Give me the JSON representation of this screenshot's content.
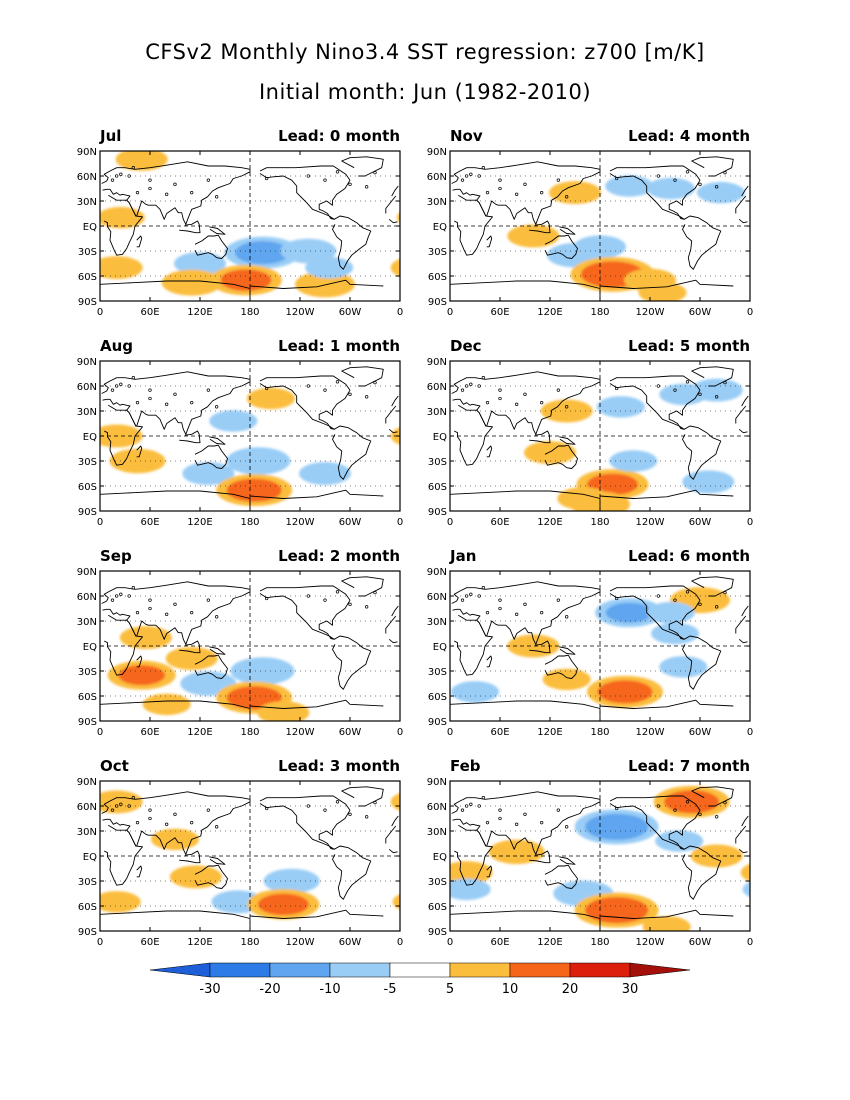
{
  "figure": {
    "title_line1": "CFSv2 Monthly Nino3.4 SST regression: z700 [m/K]",
    "title_line2": "Initial month: Jun (1982-2010)"
  },
  "axes": {
    "x_ticks": [
      "0",
      "60E",
      "120E",
      "180",
      "120W",
      "60W",
      "0"
    ],
    "y_ticks": [
      "90N",
      "60N",
      "30N",
      "EQ",
      "30S",
      "60S",
      "90S"
    ]
  },
  "colorbar": {
    "levels": [
      -30,
      -20,
      -10,
      -5,
      5,
      10,
      20,
      30
    ],
    "labels": [
      "-30",
      "-20",
      "-10",
      "-5",
      "5",
      "10",
      "20",
      "30"
    ],
    "colors": [
      "#1c5fd8",
      "#2c7be6",
      "#5fa5ef",
      "#9acdf6",
      "#ffffff",
      "#fbbd3c",
      "#f6661a",
      "#db1f0c",
      "#a50f0a"
    ]
  },
  "chart_data": {
    "type": "heatmap",
    "variable": "z700 regression on Nino3.4 SST",
    "units": "m/K",
    "x_range_lon": [
      0,
      360
    ],
    "y_range_lat": [
      -90,
      90
    ],
    "panels": [
      {
        "id": "p0",
        "month": "Jul",
        "lead": "Lead: 0 month",
        "features": [
          {
            "lon": 195,
            "lat": -32,
            "val": -12
          },
          {
            "lon": 250,
            "lat": -30,
            "val": -7
          },
          {
            "lon": 120,
            "lat": -45,
            "val": -6
          },
          {
            "lon": 175,
            "lat": -65,
            "val": 11
          },
          {
            "lon": 110,
            "lat": -68,
            "val": 8
          },
          {
            "lon": 270,
            "lat": -70,
            "val": 8
          },
          {
            "lon": 20,
            "lat": -50,
            "val": 6
          },
          {
            "lon": 50,
            "lat": 80,
            "val": 6
          },
          {
            "lon": 25,
            "lat": 10,
            "val": 5
          },
          {
            "lon": 275,
            "lat": -50,
            "val": -5
          }
        ]
      },
      {
        "id": "p1",
        "month": "Nov",
        "lead": "Lead: 4 month",
        "features": [
          {
            "lon": 150,
            "lat": -35,
            "val": -7
          },
          {
            "lon": 180,
            "lat": -25,
            "val": -6
          },
          {
            "lon": 195,
            "lat": -58,
            "val": 14
          },
          {
            "lon": 240,
            "lat": -65,
            "val": 6
          },
          {
            "lon": 100,
            "lat": -12,
            "val": 6
          },
          {
            "lon": 215,
            "lat": 48,
            "val": -5
          },
          {
            "lon": 265,
            "lat": 45,
            "val": -5
          },
          {
            "lon": 325,
            "lat": 40,
            "val": -5
          },
          {
            "lon": 150,
            "lat": 40,
            "val": 6
          },
          {
            "lon": 255,
            "lat": -80,
            "val": 5
          }
        ]
      },
      {
        "id": "p2",
        "month": "Aug",
        "lead": "Lead: 1 month",
        "features": [
          {
            "lon": 190,
            "lat": -30,
            "val": -9
          },
          {
            "lon": 130,
            "lat": -45,
            "val": -6
          },
          {
            "lon": 185,
            "lat": -65,
            "val": 12
          },
          {
            "lon": 45,
            "lat": -30,
            "val": 7
          },
          {
            "lon": 20,
            "lat": 0,
            "val": 6
          },
          {
            "lon": 205,
            "lat": 45,
            "val": 5
          },
          {
            "lon": 160,
            "lat": 18,
            "val": -5
          },
          {
            "lon": 270,
            "lat": -45,
            "val": -6
          }
        ]
      },
      {
        "id": "p3",
        "month": "Dec",
        "lead": "Lead: 5 month",
        "features": [
          {
            "lon": 195,
            "lat": -58,
            "val": 11
          },
          {
            "lon": 120,
            "lat": -20,
            "val": 6
          },
          {
            "lon": 160,
            "lat": -75,
            "val": 6
          },
          {
            "lon": 180,
            "lat": -82,
            "val": 8
          },
          {
            "lon": 310,
            "lat": -55,
            "val": -6
          },
          {
            "lon": 205,
            "lat": 35,
            "val": -5
          },
          {
            "lon": 280,
            "lat": 50,
            "val": -5
          },
          {
            "lon": 320,
            "lat": 55,
            "val": -6
          },
          {
            "lon": 140,
            "lat": 30,
            "val": 6
          },
          {
            "lon": 220,
            "lat": -30,
            "val": -5
          }
        ]
      },
      {
        "id": "p4",
        "month": "Sep",
        "lead": "Lead: 2 month",
        "features": [
          {
            "lon": 195,
            "lat": -30,
            "val": -9
          },
          {
            "lon": 130,
            "lat": -45,
            "val": -7
          },
          {
            "lon": 185,
            "lat": -62,
            "val": 12
          },
          {
            "lon": 50,
            "lat": -35,
            "val": 10
          },
          {
            "lon": 55,
            "lat": 10,
            "val": 6
          },
          {
            "lon": 110,
            "lat": -15,
            "val": 6
          },
          {
            "lon": 80,
            "lat": -70,
            "val": 5
          },
          {
            "lon": 220,
            "lat": -80,
            "val": 6
          }
        ]
      },
      {
        "id": "p5",
        "month": "Jan",
        "lead": "Lead: 6 month",
        "features": [
          {
            "lon": 215,
            "lat": 40,
            "val": -10
          },
          {
            "lon": 270,
            "lat": 15,
            "val": -5
          },
          {
            "lon": 300,
            "lat": 55,
            "val": 8
          },
          {
            "lon": 210,
            "lat": -55,
            "val": 12
          },
          {
            "lon": 100,
            "lat": 0,
            "val": 6
          },
          {
            "lon": 140,
            "lat": -40,
            "val": 5
          },
          {
            "lon": 280,
            "lat": -25,
            "val": -5
          },
          {
            "lon": 30,
            "lat": -55,
            "val": -5
          },
          {
            "lon": 265,
            "lat": 40,
            "val": -5
          }
        ]
      },
      {
        "id": "p6",
        "month": "Oct",
        "lead": "Lead: 3 month",
        "features": [
          {
            "lon": 230,
            "lat": -30,
            "val": -7
          },
          {
            "lon": 165,
            "lat": -55,
            "val": -6
          },
          {
            "lon": 220,
            "lat": -58,
            "val": 11
          },
          {
            "lon": 20,
            "lat": 65,
            "val": 6
          },
          {
            "lon": 90,
            "lat": 20,
            "val": 5
          },
          {
            "lon": 115,
            "lat": -25,
            "val": 6
          },
          {
            "lon": 20,
            "lat": -55,
            "val": 5
          }
        ]
      },
      {
        "id": "p7",
        "month": "Feb",
        "lead": "Lead: 7 month",
        "features": [
          {
            "lon": 200,
            "lat": 35,
            "val": -14
          },
          {
            "lon": 290,
            "lat": 65,
            "val": 12
          },
          {
            "lon": 275,
            "lat": 18,
            "val": -5
          },
          {
            "lon": 160,
            "lat": -45,
            "val": -8
          },
          {
            "lon": 200,
            "lat": -65,
            "val": 14
          },
          {
            "lon": 80,
            "lat": 5,
            "val": 7
          },
          {
            "lon": 20,
            "lat": -20,
            "val": 6
          },
          {
            "lon": 320,
            "lat": 0,
            "val": 6
          },
          {
            "lon": 260,
            "lat": -85,
            "val": 5
          },
          {
            "lon": 20,
            "lat": -40,
            "val": -5
          }
        ]
      }
    ]
  }
}
